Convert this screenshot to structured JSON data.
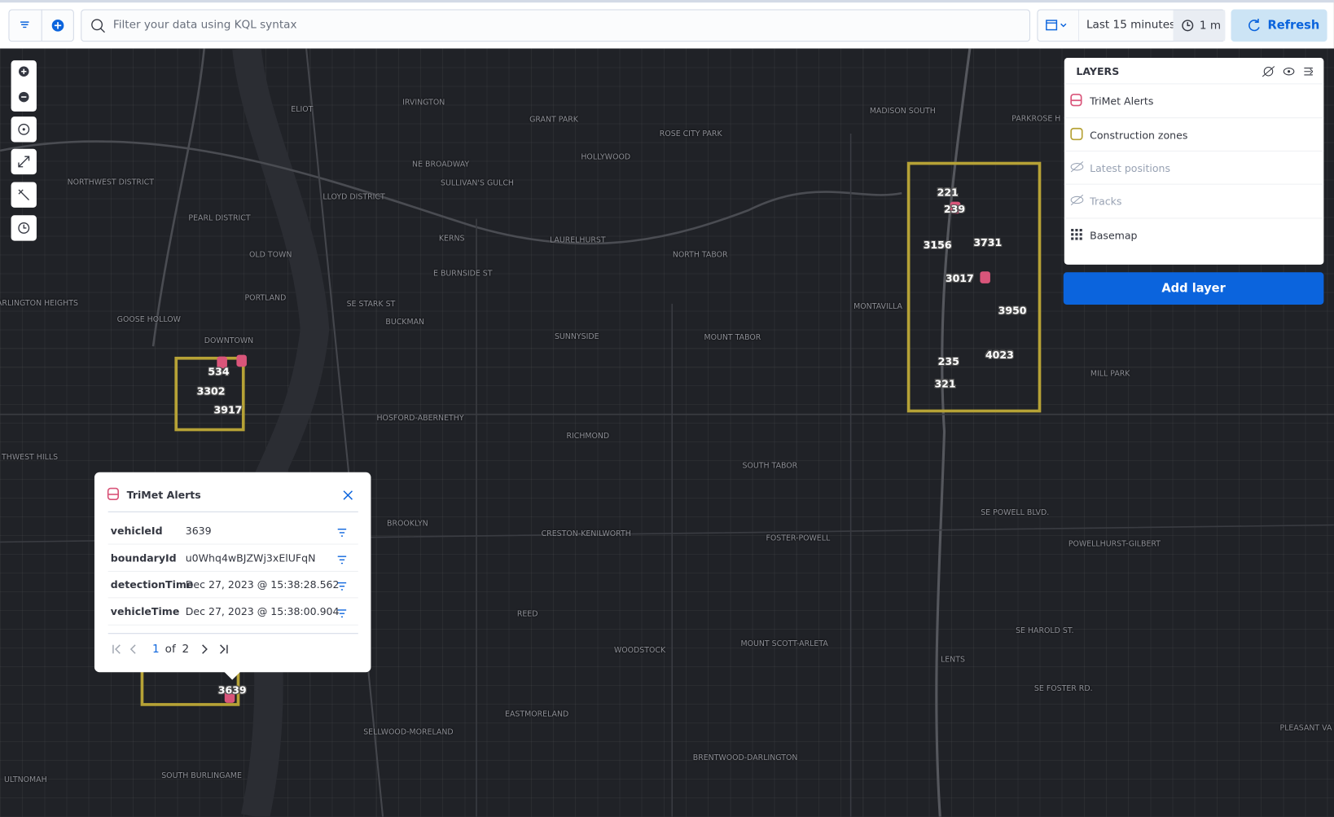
{
  "query": {
    "placeholder": "Filter your data using KQL syntax"
  },
  "time": {
    "range": "Last 15 minutes",
    "interval": "1 m",
    "refresh": "Refresh"
  },
  "layers": {
    "title": "LAYERS",
    "items": [
      {
        "name": "TriMet Alerts"
      },
      {
        "name": "Construction zones"
      },
      {
        "name": "Latest positions"
      },
      {
        "name": "Tracks"
      },
      {
        "name": "Basemap"
      }
    ],
    "add": "Add layer"
  },
  "popup": {
    "title": "TriMet Alerts",
    "rows": [
      {
        "field": "vehicleId",
        "value": "3639"
      },
      {
        "field": "boundaryId",
        "value": "u0Whq4wBJZWj3xElUFqN"
      },
      {
        "field": "detectionTime",
        "value": "Dec 27, 2023 @ 15:38:28.562"
      },
      {
        "field": "vehicleTime",
        "value": "Dec 27, 2023 @ 15:38:00.904"
      }
    ],
    "pager": {
      "current": "1",
      "of": "of",
      "total": "2"
    }
  },
  "map": {
    "places": [
      "ELIOT",
      "IRVINGTON",
      "GRANT PARK",
      "ROSE CITY PARK",
      "MADISON SOUTH",
      "PARKROSE H",
      "HOLLYWOOD",
      "NE BROADWAY",
      "SULLIVAN'S GULCH",
      "NORTHWEST DISTRICT",
      "LLOYD DISTRICT",
      "PEARL DISTRICT",
      "KERNS",
      "LAURELHURST",
      "NORTH TABOR",
      "OLD TOWN",
      "E BURNSIDE ST",
      "PORTLAND",
      "ARLINGTON HEIGHTS",
      "SE STARK ST",
      "MONTAVILLA",
      "GOOSE HOLLOW",
      "BUCKMAN",
      "SUNNYSIDE",
      "MOUNT TABOR",
      "DOWNTOWN",
      "MILL PARK",
      "HOSFORD-ABERNETHY",
      "RICHMOND",
      "THWEST HILLS",
      "SOUTH TABOR",
      "BROOKLYN",
      "CRESTON-KENILWORTH",
      "FOSTER-POWELL",
      "POWELLHURST-GILBERT",
      "SE POWELL BLVD.",
      "REED",
      "WOODSTOCK",
      "MOUNT SCOTT-ARLETA",
      "LENTS",
      "SE HAROLD ST.",
      "SE FOSTER RD.",
      "EASTMORELAND",
      "SELLWOOD-MORELAND",
      "BRENTWOOD-DARLINGTON",
      "SOUTH BURLINGAME",
      "ULTNOMAH",
      "PLEASANT VA"
    ],
    "vehicles": [
      "221",
      "239",
      "3156",
      "3731",
      "3017",
      "3950",
      "235",
      "321",
      "4023",
      "534",
      "3302",
      "3917",
      "3639"
    ]
  }
}
